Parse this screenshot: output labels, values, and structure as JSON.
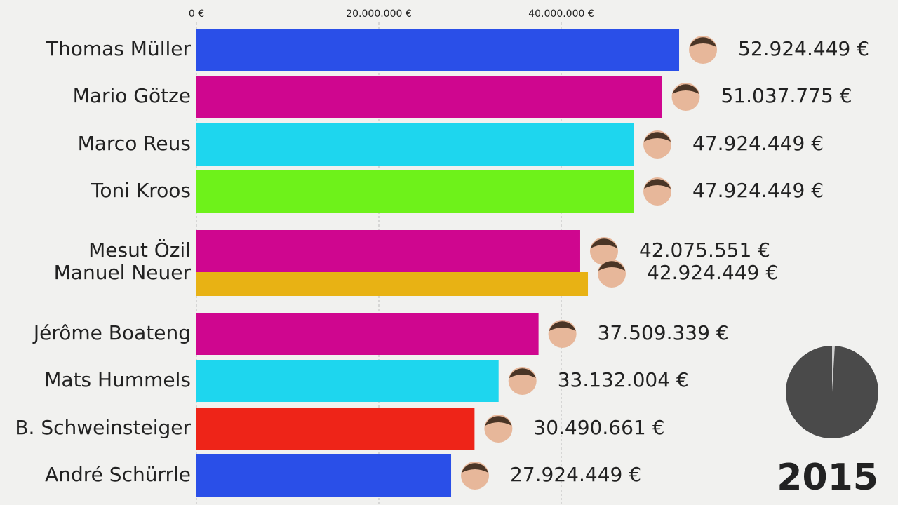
{
  "chart_data": {
    "type": "bar",
    "orientation": "horizontal",
    "year": "2015",
    "categories": [
      "Thomas Müller",
      "Mario Götze",
      "Marco Reus",
      "Toni Kroos",
      "Mesut Özil",
      "Manuel Neuer",
      "Jérôme Boateng",
      "Mats Hummels",
      "B. Schweinsteiger",
      "André Schürrle"
    ],
    "values": [
      52924449,
      51037775,
      47924449,
      47924449,
      42075551,
      42924449,
      37509339,
      33132004,
      30490661,
      27924449
    ],
    "value_labels": [
      "52.924.449 €",
      "51.037.775 €",
      "47.924.449 €",
      "47.924.449 €",
      "42.075.551 €",
      "42.924.449 €",
      "37.509.339 €",
      "33.132.004 €",
      "30.490.661 €",
      "27.924.449 €"
    ],
    "colors": [
      "#2a4fe8",
      "#cf068f",
      "#1ed6ee",
      "#6ef21a",
      "#cf068f",
      "#e8b214",
      "#cf068f",
      "#1ed6ee",
      "#ee2418",
      "#2a4fe8"
    ],
    "xlim": [
      0,
      60000000
    ],
    "xticks": [
      {
        "value": 0,
        "label": "0 €"
      },
      {
        "value": 20000000,
        "label": "20.000.000 €"
      },
      {
        "value": 40000000,
        "label": "40.000.000 €"
      }
    ],
    "grid": true
  }
}
